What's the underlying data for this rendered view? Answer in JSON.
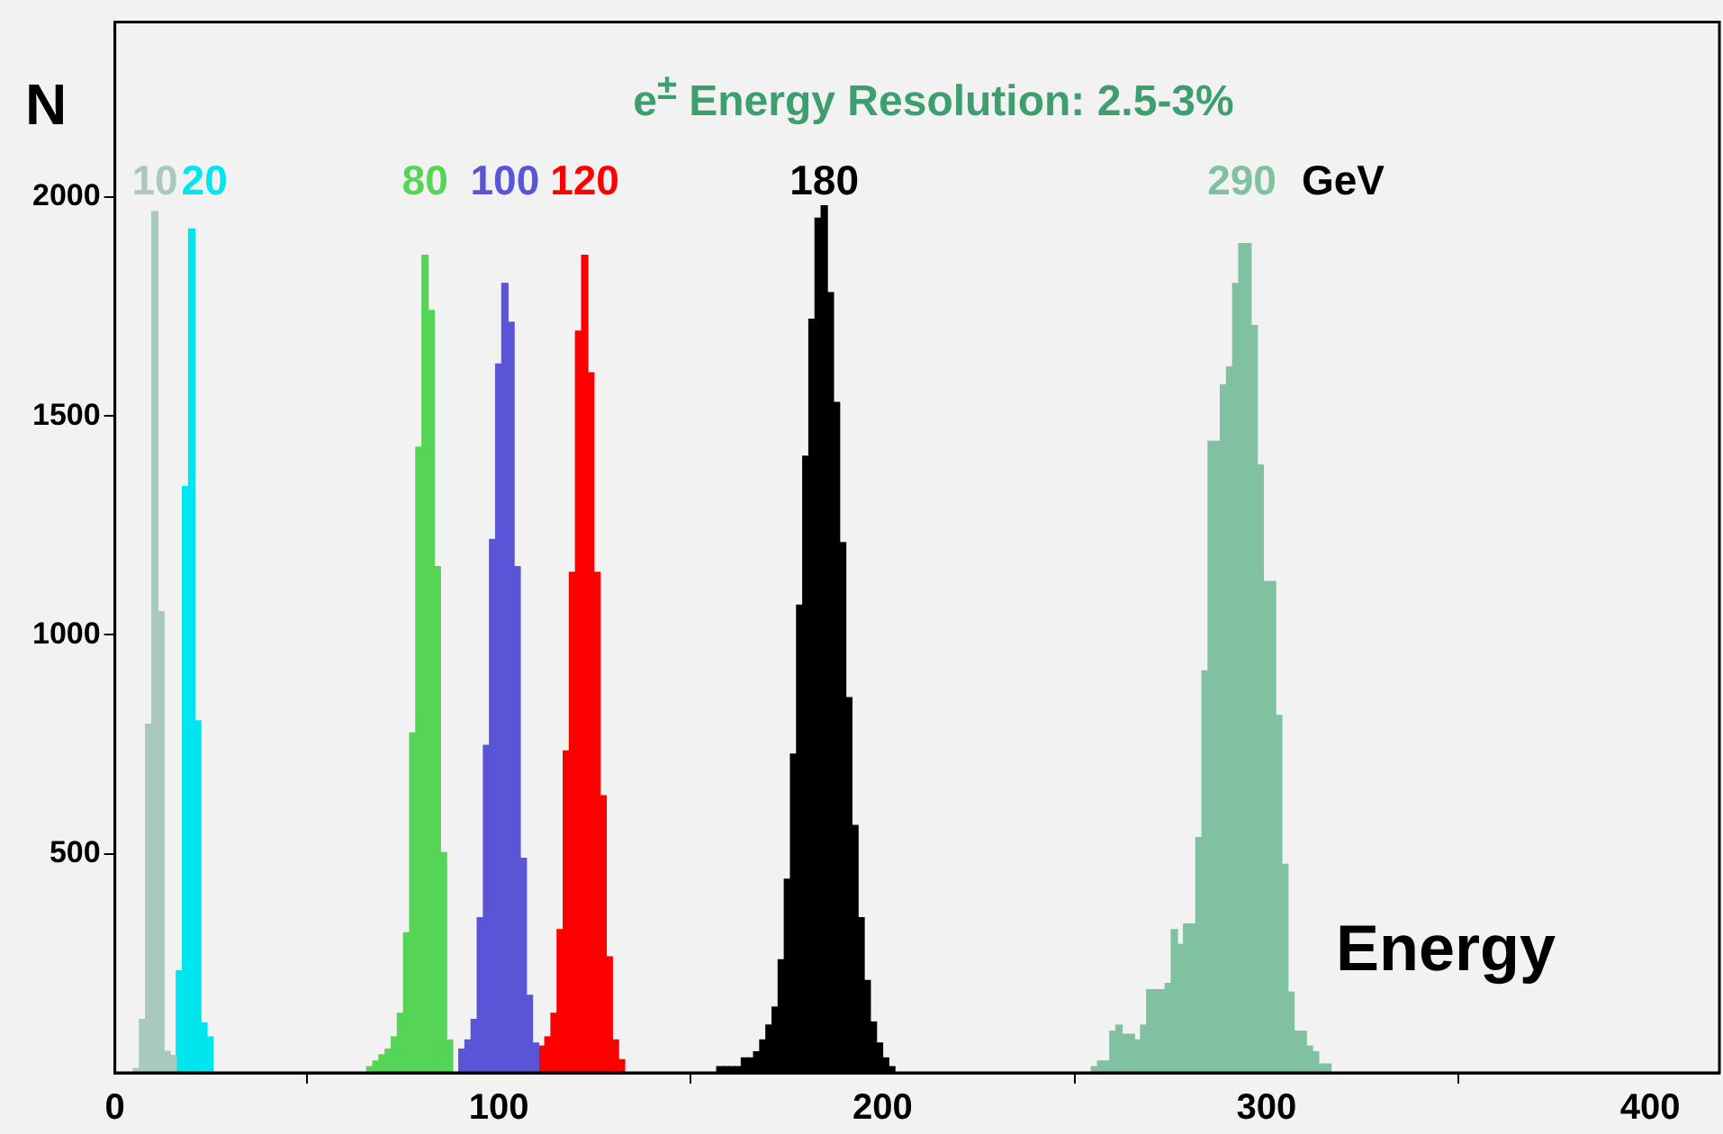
{
  "chart_data": {
    "type": "histogram",
    "title": "e$^{±}$ Energy Resolution: 2.5-3%",
    "xlabel": "Energy",
    "ylabel": "N",
    "annotations": [
      "GeV"
    ],
    "xlim": [
      0,
      418
    ],
    "ylim": [
      0,
      2400
    ],
    "xticks": [
      0,
      100,
      200,
      300,
      400
    ],
    "yticks": [
      500,
      1000,
      1500,
      2000
    ],
    "grid": false,
    "legend": false,
    "bins": [
      4.8,
      6.4,
      8,
      9.6,
      11.2,
      12.8,
      14.4,
      16,
      17.6,
      19.2,
      20.8,
      22.4,
      24,
      25.6,
      27.2,
      28.8,
      30.4,
      32,
      33.6,
      35.2,
      36.8,
      38.4,
      40,
      41.6,
      43.2,
      44.8,
      46.4,
      48,
      49.6,
      51.2,
      52.8,
      54.4,
      56,
      57.6,
      59.2,
      60.8,
      62.4,
      64,
      65.6,
      67.2,
      68.8,
      70.4,
      72,
      73.6,
      75.2,
      76.8,
      78.4,
      80,
      81.6,
      83.2,
      84.8,
      86.4,
      88,
      89.6,
      91.2,
      92.8,
      94.4,
      96,
      97.6,
      99.2,
      100.8,
      102.4,
      104,
      105.6,
      107.2,
      108.8,
      110.4,
      112,
      113.6,
      115.2,
      116.8,
      118.4,
      120,
      121.6,
      123.2,
      124.8,
      126.4,
      128,
      129.6,
      131.2,
      132.8,
      134.4,
      136,
      137.6,
      139.2,
      140.8,
      142.4,
      144,
      145.6,
      147.2,
      148.8,
      150.4,
      152,
      153.6,
      155.2,
      156.8,
      158.4,
      160,
      161.6,
      163.2,
      164.8,
      166.4,
      168,
      169.6,
      171.2,
      172.8,
      174.4,
      176,
      177.6,
      179.2,
      180.8,
      182.4,
      184,
      185.6,
      187.2,
      188.8,
      190.4,
      192,
      193.6,
      195.2,
      196.8,
      198.4,
      200,
      201.6,
      203.2,
      204.8,
      206.4,
      208,
      209.6,
      211.2,
      212.8,
      214.4,
      216,
      217.6,
      219.2,
      220.8,
      222.4,
      224,
      225.6,
      227.2,
      228.8,
      230.4,
      232,
      233.6,
      235.2,
      236.8,
      238.4,
      240,
      241.6,
      243.2,
      244.8,
      246.4,
      248,
      249.6,
      251.2,
      252.8,
      254.4,
      256,
      257.6,
      259.2,
      260.8,
      262.4,
      264,
      265.6,
      267.2,
      268.8,
      270.4,
      272,
      273.6,
      275.2,
      276.8,
      278.4,
      280,
      281.6,
      283.2,
      284.8,
      286.4,
      288,
      289.6,
      291.2,
      292.8,
      294.4,
      296,
      297.6,
      299.2,
      300.8,
      302.4,
      304,
      305.6,
      307.2,
      308.8,
      310.4,
      312,
      313.6,
      315.2,
      316.8
    ],
    "series": [
      {
        "name": "10",
        "color": "#a9c9bf",
        "values": [
          10,
          122,
          796,
          1967,
          1053,
          49,
          40,
          null,
          null,
          null,
          null,
          null,
          null,
          null,
          null,
          null,
          null,
          null,
          null,
          null,
          null,
          null,
          null,
          null,
          null,
          null,
          null,
          null,
          null,
          null,
          null,
          null,
          null,
          null,
          null,
          null,
          null,
          null,
          null,
          null,
          null,
          null,
          null,
          null,
          null,
          null,
          null,
          null,
          null,
          null,
          null,
          null,
          null,
          null,
          null,
          null,
          null,
          null,
          null,
          null,
          null,
          null,
          null,
          null,
          null,
          null,
          null,
          null,
          null,
          null,
          null,
          null,
          null,
          null,
          null,
          null,
          null,
          null,
          null,
          null,
          null,
          null,
          null,
          null,
          null,
          null,
          null,
          null,
          null,
          null,
          null,
          null,
          null,
          null,
          null,
          null,
          null,
          null,
          null,
          null,
          null,
          null,
          null,
          null,
          null,
          null,
          null,
          null,
          null,
          null,
          null,
          null,
          null,
          null,
          null,
          null,
          null,
          null,
          null,
          null,
          null,
          null,
          null,
          null,
          null,
          null,
          null,
          null,
          null,
          null,
          null,
          null,
          null,
          null,
          null,
          null,
          null,
          null,
          null,
          null,
          null,
          null,
          null,
          null,
          null,
          null,
          null,
          null,
          null,
          null,
          null,
          null,
          null,
          null,
          null,
          null,
          null,
          null,
          null,
          null,
          null,
          null,
          null,
          null,
          null,
          null,
          null,
          null,
          null,
          null,
          null,
          null,
          null,
          null,
          null,
          null,
          null,
          null,
          null,
          null,
          null,
          null,
          null,
          null,
          null,
          null,
          null,
          null,
          null,
          null,
          null,
          null,
          null,
          null,
          null
        ]
      },
      {
        "name": "20",
        "color": "#00e5ee",
        "values": [
          null,
          null,
          null,
          null,
          null,
          null,
          null,
          233,
          1339,
          1927,
          804,
          114,
          82,
          null,
          null,
          null,
          null,
          null,
          null,
          null,
          null,
          null,
          null,
          null,
          null,
          null,
          null,
          null,
          null,
          null,
          null,
          null,
          null,
          null,
          null,
          null,
          null,
          null,
          null,
          null,
          null,
          null,
          null,
          null,
          null,
          null,
          null,
          null,
          null,
          null,
          null,
          null,
          null,
          null,
          null,
          null,
          null,
          null,
          null,
          null,
          null,
          null,
          null,
          null,
          null,
          null,
          null,
          null,
          null,
          null,
          null,
          null,
          null,
          null,
          null,
          null,
          null,
          null,
          null,
          null,
          null,
          null,
          null,
          null,
          null,
          null,
          null,
          null,
          null,
          null,
          null,
          null,
          null,
          null,
          null,
          null,
          null,
          null,
          null,
          null,
          null,
          null,
          null,
          null,
          null,
          null,
          null,
          null,
          null,
          null,
          null,
          null,
          null,
          null,
          null,
          null,
          null,
          null,
          null,
          null,
          null,
          null,
          null,
          null,
          null,
          null,
          null,
          null,
          null,
          null,
          null,
          null,
          null,
          null,
          null,
          null,
          null,
          null,
          null,
          null,
          null,
          null,
          null,
          null,
          null,
          null,
          null,
          null,
          null,
          null,
          null,
          null,
          null,
          null,
          null,
          null,
          null,
          null,
          null,
          null,
          null,
          null,
          null,
          null,
          null,
          null,
          null,
          null,
          null,
          null,
          null,
          null,
          null,
          null,
          null,
          null,
          null,
          null,
          null,
          null,
          null,
          null,
          null,
          null,
          null,
          null,
          null,
          null,
          null,
          null,
          null,
          null,
          null,
          null,
          null
        ]
      },
      {
        "name": "80",
        "color": "#55d455",
        "values": [
          null,
          null,
          null,
          null,
          null,
          null,
          null,
          null,
          null,
          null,
          null,
          null,
          null,
          null,
          null,
          null,
          null,
          null,
          null,
          null,
          null,
          null,
          null,
          null,
          null,
          null,
          null,
          null,
          null,
          null,
          null,
          null,
          null,
          null,
          null,
          null,
          null,
          null,
          14,
          27,
          41,
          54,
          82,
          136,
          320,
          776,
          1429,
          1867,
          1741,
          1156,
          503,
          75,
          null,
          null,
          null,
          null,
          null,
          null,
          null,
          null,
          null,
          null,
          null,
          null,
          null,
          null,
          null,
          null,
          null,
          null,
          null,
          null,
          null,
          null,
          null,
          null,
          null,
          null,
          null,
          null,
          null,
          null,
          null,
          null,
          null,
          null,
          null,
          null,
          null,
          null,
          null,
          null,
          null,
          null,
          null,
          null,
          null,
          null,
          null,
          null,
          null,
          null,
          null,
          null,
          null,
          null,
          null,
          null,
          null,
          null,
          null,
          null,
          null,
          null,
          null,
          null,
          null,
          null,
          null,
          null,
          null,
          null,
          null,
          null,
          null,
          null,
          null,
          null,
          null,
          null,
          null,
          null,
          null,
          null,
          null,
          null,
          null,
          null,
          null,
          null,
          null,
          null,
          null,
          null,
          null,
          null,
          null,
          null,
          null,
          null,
          null,
          null,
          null,
          null,
          null,
          null,
          null,
          null,
          null,
          null,
          null,
          null,
          null,
          null,
          null,
          null,
          null,
          null,
          null,
          null,
          null,
          null,
          null,
          null,
          null,
          null,
          null,
          null,
          null,
          null,
          null,
          null,
          null,
          null,
          null,
          null,
          null,
          null,
          null,
          null,
          null,
          null,
          null,
          null,
          null
        ]
      },
      {
        "name": "100",
        "color": "#5a55d6",
        "values": [
          null,
          null,
          null,
          null,
          null,
          null,
          null,
          null,
          null,
          null,
          null,
          null,
          null,
          null,
          null,
          null,
          null,
          null,
          null,
          null,
          null,
          null,
          null,
          null,
          null,
          null,
          null,
          null,
          null,
          null,
          null,
          null,
          null,
          null,
          null,
          null,
          null,
          null,
          null,
          null,
          null,
          null,
          null,
          null,
          null,
          null,
          null,
          null,
          null,
          null,
          null,
          null,
          null,
          54,
          75,
          122,
          354,
          748,
          1218,
          1619,
          1803,
          1714,
          1156,
          490,
          177,
          68,
          null,
          null,
          null,
          null,
          null,
          null,
          null,
          null,
          null,
          null,
          null,
          null,
          null,
          null,
          null,
          null,
          null,
          null,
          null,
          null,
          null,
          null,
          null,
          null,
          null,
          null,
          null,
          null,
          null,
          null,
          null,
          null,
          null,
          null,
          null,
          null,
          null,
          null,
          null,
          null,
          null,
          null,
          null,
          null,
          null,
          null,
          null,
          null,
          null,
          null,
          null,
          null,
          null,
          null,
          null,
          null,
          null,
          null,
          null,
          null,
          null,
          null,
          null,
          null,
          null,
          null,
          null,
          null,
          null,
          null,
          null,
          null,
          null,
          null,
          null,
          null,
          null,
          null,
          null,
          null,
          null,
          null,
          null,
          null,
          null,
          null,
          null,
          null,
          null,
          null,
          null,
          null,
          null,
          null,
          null,
          null,
          null,
          null,
          null,
          null,
          null,
          null,
          null,
          null,
          null,
          null,
          null,
          null,
          null,
          null,
          null,
          null,
          null,
          null,
          null,
          null,
          null,
          null,
          null,
          null,
          null,
          null,
          null,
          null,
          null,
          null,
          null,
          null,
          null
        ]
      },
      {
        "name": "120",
        "color": "#ff0000",
        "values": [
          null,
          null,
          null,
          null,
          null,
          null,
          null,
          null,
          null,
          null,
          null,
          null,
          null,
          null,
          null,
          null,
          null,
          null,
          null,
          null,
          null,
          null,
          null,
          null,
          null,
          null,
          null,
          null,
          null,
          null,
          null,
          null,
          null,
          null,
          null,
          null,
          null,
          null,
          null,
          null,
          null,
          null,
          null,
          null,
          null,
          null,
          null,
          null,
          null,
          null,
          null,
          null,
          null,
          null,
          null,
          null,
          null,
          null,
          null,
          null,
          null,
          null,
          null,
          null,
          null,
          null,
          61,
          82,
          136,
          327,
          735,
          1143,
          1694,
          1867,
          1599,
          1143,
          633,
          265,
          75,
          30,
          null,
          null,
          null,
          null,
          null,
          null,
          null,
          null,
          null,
          null,
          null,
          null,
          null,
          null,
          null,
          null,
          null,
          null,
          null,
          null,
          null,
          null,
          null,
          null,
          null,
          null,
          null,
          null,
          null,
          null,
          null,
          null,
          null,
          null,
          null,
          null,
          null,
          null,
          null,
          null,
          null,
          null,
          null,
          null,
          null,
          null,
          null,
          null,
          null,
          null,
          null,
          null,
          null,
          null,
          null,
          null,
          null,
          null,
          null,
          null,
          null,
          null,
          null,
          null,
          null,
          null,
          null,
          null,
          null,
          null,
          null,
          null,
          null,
          null,
          null,
          null,
          null,
          null,
          null,
          null,
          null,
          null,
          null,
          null,
          null,
          null,
          null,
          null,
          null,
          null,
          null,
          null,
          null,
          null,
          null,
          null,
          null,
          null,
          null,
          null,
          null,
          null,
          null,
          null,
          null,
          null,
          null,
          null,
          null,
          null,
          null,
          null,
          null,
          null,
          null
        ]
      },
      {
        "name": "180",
        "color": "#000000",
        "values": [
          null,
          null,
          null,
          null,
          null,
          null,
          null,
          null,
          null,
          null,
          null,
          null,
          null,
          null,
          null,
          null,
          null,
          null,
          null,
          null,
          null,
          null,
          null,
          null,
          null,
          null,
          null,
          null,
          null,
          null,
          null,
          null,
          null,
          null,
          null,
          null,
          null,
          null,
          null,
          null,
          null,
          null,
          null,
          null,
          null,
          null,
          null,
          null,
          null,
          null,
          null,
          null,
          null,
          null,
          null,
          null,
          null,
          null,
          null,
          null,
          null,
          null,
          null,
          null,
          null,
          null,
          null,
          null,
          null,
          null,
          null,
          null,
          null,
          null,
          null,
          null,
          null,
          null,
          null,
          null,
          null,
          null,
          null,
          null,
          null,
          null,
          null,
          null,
          null,
          null,
          null,
          null,
          null,
          null,
          null,
          14,
          14,
          14,
          14,
          34,
          34,
          48,
          75,
          109,
          150,
          258,
          442,
          728,
          1068,
          1408,
          1721,
          1952,
          1980,
          1782,
          1531,
          1211,
          857,
          565,
          354,
          211,
          116,
          68,
          34,
          14,
          null,
          null,
          null,
          null,
          null,
          null,
          null,
          null,
          null,
          null,
          null,
          null,
          null,
          null,
          null,
          null,
          null,
          null,
          null,
          null,
          null,
          null,
          null,
          null,
          null,
          null,
          null,
          null,
          null,
          null,
          null,
          null,
          null,
          null,
          null,
          null,
          null,
          null,
          null,
          null,
          null,
          null,
          null,
          null,
          null,
          null,
          null,
          null,
          null,
          null,
          null,
          null,
          null,
          null,
          null,
          null,
          null,
          null,
          null,
          null,
          null,
          null,
          null,
          null,
          null,
          null,
          null,
          null,
          null,
          null,
          null
        ]
      },
      {
        "name": "290",
        "color": "#7fc1a0",
        "values": [
          null,
          null,
          null,
          null,
          null,
          null,
          null,
          null,
          null,
          null,
          null,
          null,
          null,
          null,
          null,
          null,
          null,
          null,
          null,
          null,
          null,
          null,
          null,
          null,
          null,
          null,
          null,
          null,
          null,
          null,
          null,
          null,
          null,
          null,
          null,
          null,
          null,
          null,
          null,
          null,
          null,
          null,
          null,
          null,
          null,
          null,
          null,
          null,
          null,
          null,
          null,
          null,
          null,
          null,
          null,
          null,
          null,
          null,
          null,
          null,
          null,
          null,
          null,
          null,
          null,
          null,
          null,
          null,
          null,
          null,
          null,
          null,
          null,
          null,
          null,
          null,
          null,
          null,
          null,
          null,
          null,
          null,
          null,
          null,
          null,
          null,
          null,
          null,
          null,
          null,
          null,
          null,
          null,
          null,
          null,
          null,
          null,
          null,
          null,
          null,
          null,
          null,
          null,
          null,
          null,
          null,
          null,
          null,
          null,
          null,
          null,
          null,
          null,
          null,
          null,
          null,
          null,
          null,
          null,
          null,
          null,
          null,
          null,
          null,
          null,
          null,
          null,
          null,
          null,
          null,
          null,
          null,
          null,
          null,
          null,
          null,
          null,
          null,
          null,
          null,
          null,
          null,
          null,
          null,
          null,
          null,
          null,
          null,
          null,
          null,
          null,
          null,
          null,
          null,
          null,
          null,
          14,
          27,
          27,
          95,
          109,
          88,
          88,
          75,
          109,
          190,
          190,
          190,
          204,
          327,
          293,
          340,
          340,
          537,
          918,
          1442,
          1442,
          1571,
          1612,
          1803,
          1894,
          1894,
          1707,
          1388,
          1122,
          1122,
          816,
          476,
          184,
          95,
          95,
          61,
          48,
          20,
          20
        ]
      }
    ]
  }
}
